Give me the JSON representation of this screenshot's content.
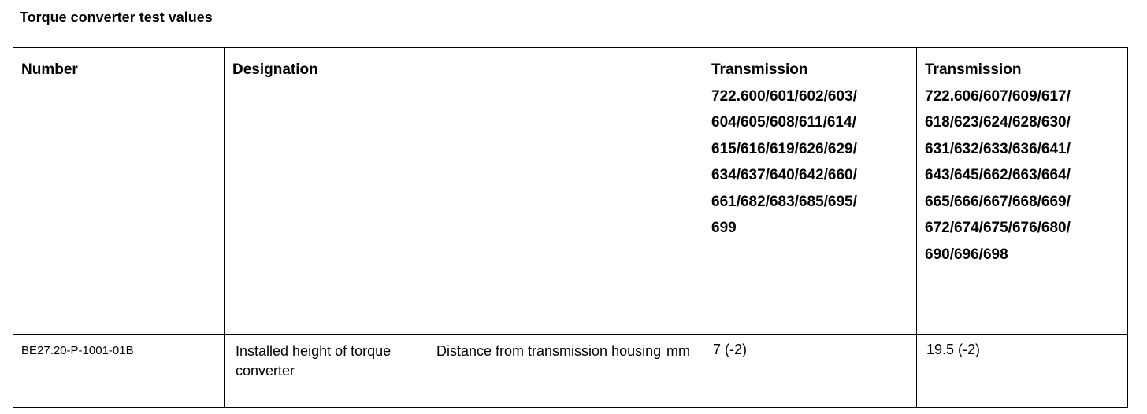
{
  "title": "Torque converter test values",
  "headers": {
    "number": "Number",
    "designation": "Designation",
    "col1": [
      "Transmission",
      "722.600/601/602/603/",
      "604/605/608/611/614/",
      "615/616/619/626/629/",
      "634/637/640/642/660/",
      "661/682/683/685/695/",
      "699"
    ],
    "col2": [
      "Transmission",
      "722.606/607/609/617/",
      "618/623/624/628/630/",
      "631/632/633/636/641/",
      "643/645/662/663/664/",
      "665/666/667/668/669/",
      "672/674/675/676/680/",
      "690/696/698"
    ]
  },
  "rows": [
    {
      "number": "BE27.20-P-1001-01B",
      "designation": "Installed height of torque converter",
      "detail": "Distance from transmission housing",
      "unit": "mm",
      "value1": "7 (-2)",
      "value2": "19.5 (-2)"
    }
  ]
}
